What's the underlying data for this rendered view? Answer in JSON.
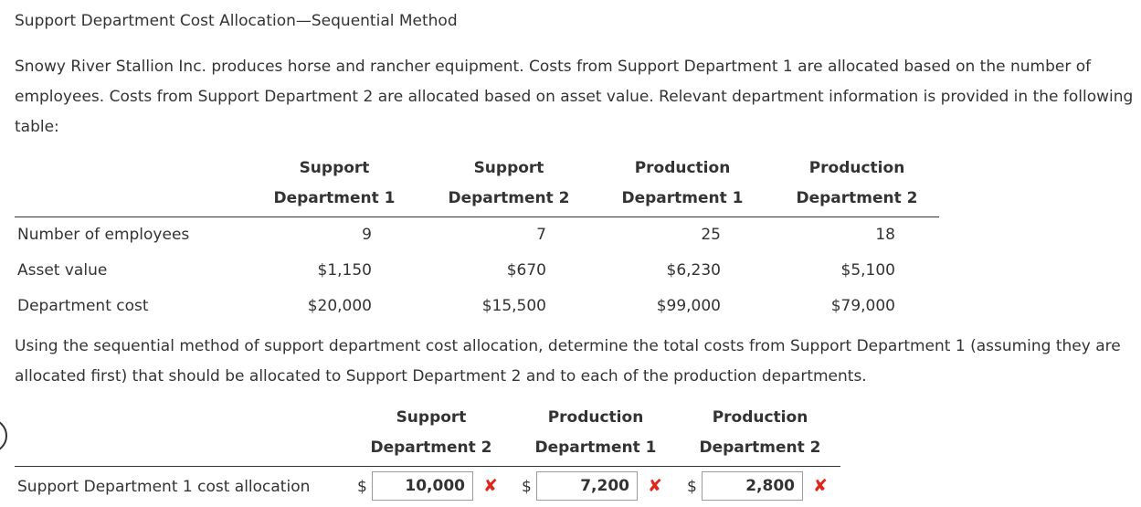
{
  "title": "Support Department Cost Allocation—Sequential Method",
  "intro": "Snowy River Stallion Inc. produces horse and rancher equipment. Costs from Support Department 1 are allocated based on the number of employees. Costs from Support Department 2 are allocated based on asset value. Relevant department information is provided in the following table:",
  "table": {
    "headers": [
      {
        "line1": "Support",
        "line2": "Department 1"
      },
      {
        "line1": "Support",
        "line2": "Department 2"
      },
      {
        "line1": "Production",
        "line2": "Department 1"
      },
      {
        "line1": "Production",
        "line2": "Department 2"
      }
    ],
    "rows": [
      {
        "label": "Number of employees",
        "values": [
          "9",
          "7",
          "25",
          "18"
        ]
      },
      {
        "label": "Asset value",
        "values": [
          "$1,150",
          "$670",
          "$6,230",
          "$5,100"
        ]
      },
      {
        "label": "Department cost",
        "values": [
          "$20,000",
          "$15,500",
          "$99,000",
          "$79,000"
        ]
      }
    ]
  },
  "question": "Using the sequential method of support department cost allocation, determine the total costs from Support Department 1 (assuming they are allocated first) that should be allocated to Support Department 2 and to each of the production departments.",
  "answer": {
    "headers": [
      {
        "line1": "Support",
        "line2": "Department 2"
      },
      {
        "line1": "Production",
        "line2": "Department 1"
      },
      {
        "line1": "Production",
        "line2": "Department 2"
      }
    ],
    "row_label": "Support Department 1 cost allocation",
    "currency": "$",
    "inputs": [
      {
        "value": "10,000",
        "status": "incorrect",
        "mark": "✘"
      },
      {
        "value": "7,200",
        "status": "incorrect",
        "mark": "✘"
      },
      {
        "value": "2,800",
        "status": "incorrect",
        "mark": "✘"
      }
    ]
  },
  "colors": {
    "text": "#333333",
    "incorrect": "#e0261b",
    "border": "#9a9a9a"
  }
}
